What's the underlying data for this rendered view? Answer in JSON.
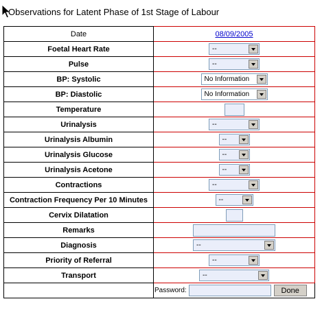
{
  "title": "Observations for Latent Phase of 1st Stage of Labour",
  "header": {
    "date_label": "Date",
    "date_value": "08/09/2005"
  },
  "rows": [
    {
      "label": "Foetal Heart Rate",
      "value": "--"
    },
    {
      "label": "Pulse",
      "value": "--"
    },
    {
      "label": "BP: Systolic",
      "value": "No Information"
    },
    {
      "label": "BP: Diastolic",
      "value": "No Information"
    },
    {
      "label": "Temperature",
      "value": ""
    },
    {
      "label": "Urinalysis",
      "value": "--"
    },
    {
      "label": "Urinalysis Albumin",
      "value": "--"
    },
    {
      "label": "Urinalysis Glucose",
      "value": "--"
    },
    {
      "label": "Urinalysis Acetone",
      "value": "--"
    },
    {
      "label": "Contractions",
      "value": "--"
    },
    {
      "label": "Contraction Frequency Per 10 Minutes",
      "value": "--"
    },
    {
      "label": "Cervix Dilatation",
      "value": ""
    },
    {
      "label": "Remarks",
      "value": ""
    },
    {
      "label": "Diagnosis",
      "value": "--"
    },
    {
      "label": "Priority of Referral",
      "value": "--"
    },
    {
      "label": "Transport",
      "value": "--"
    }
  ],
  "footer": {
    "password_label": "Password:",
    "done_label": "Done"
  },
  "icons": {
    "cursor": "arrow-cursor-icon",
    "dropdown": "chevron-down-icon"
  }
}
